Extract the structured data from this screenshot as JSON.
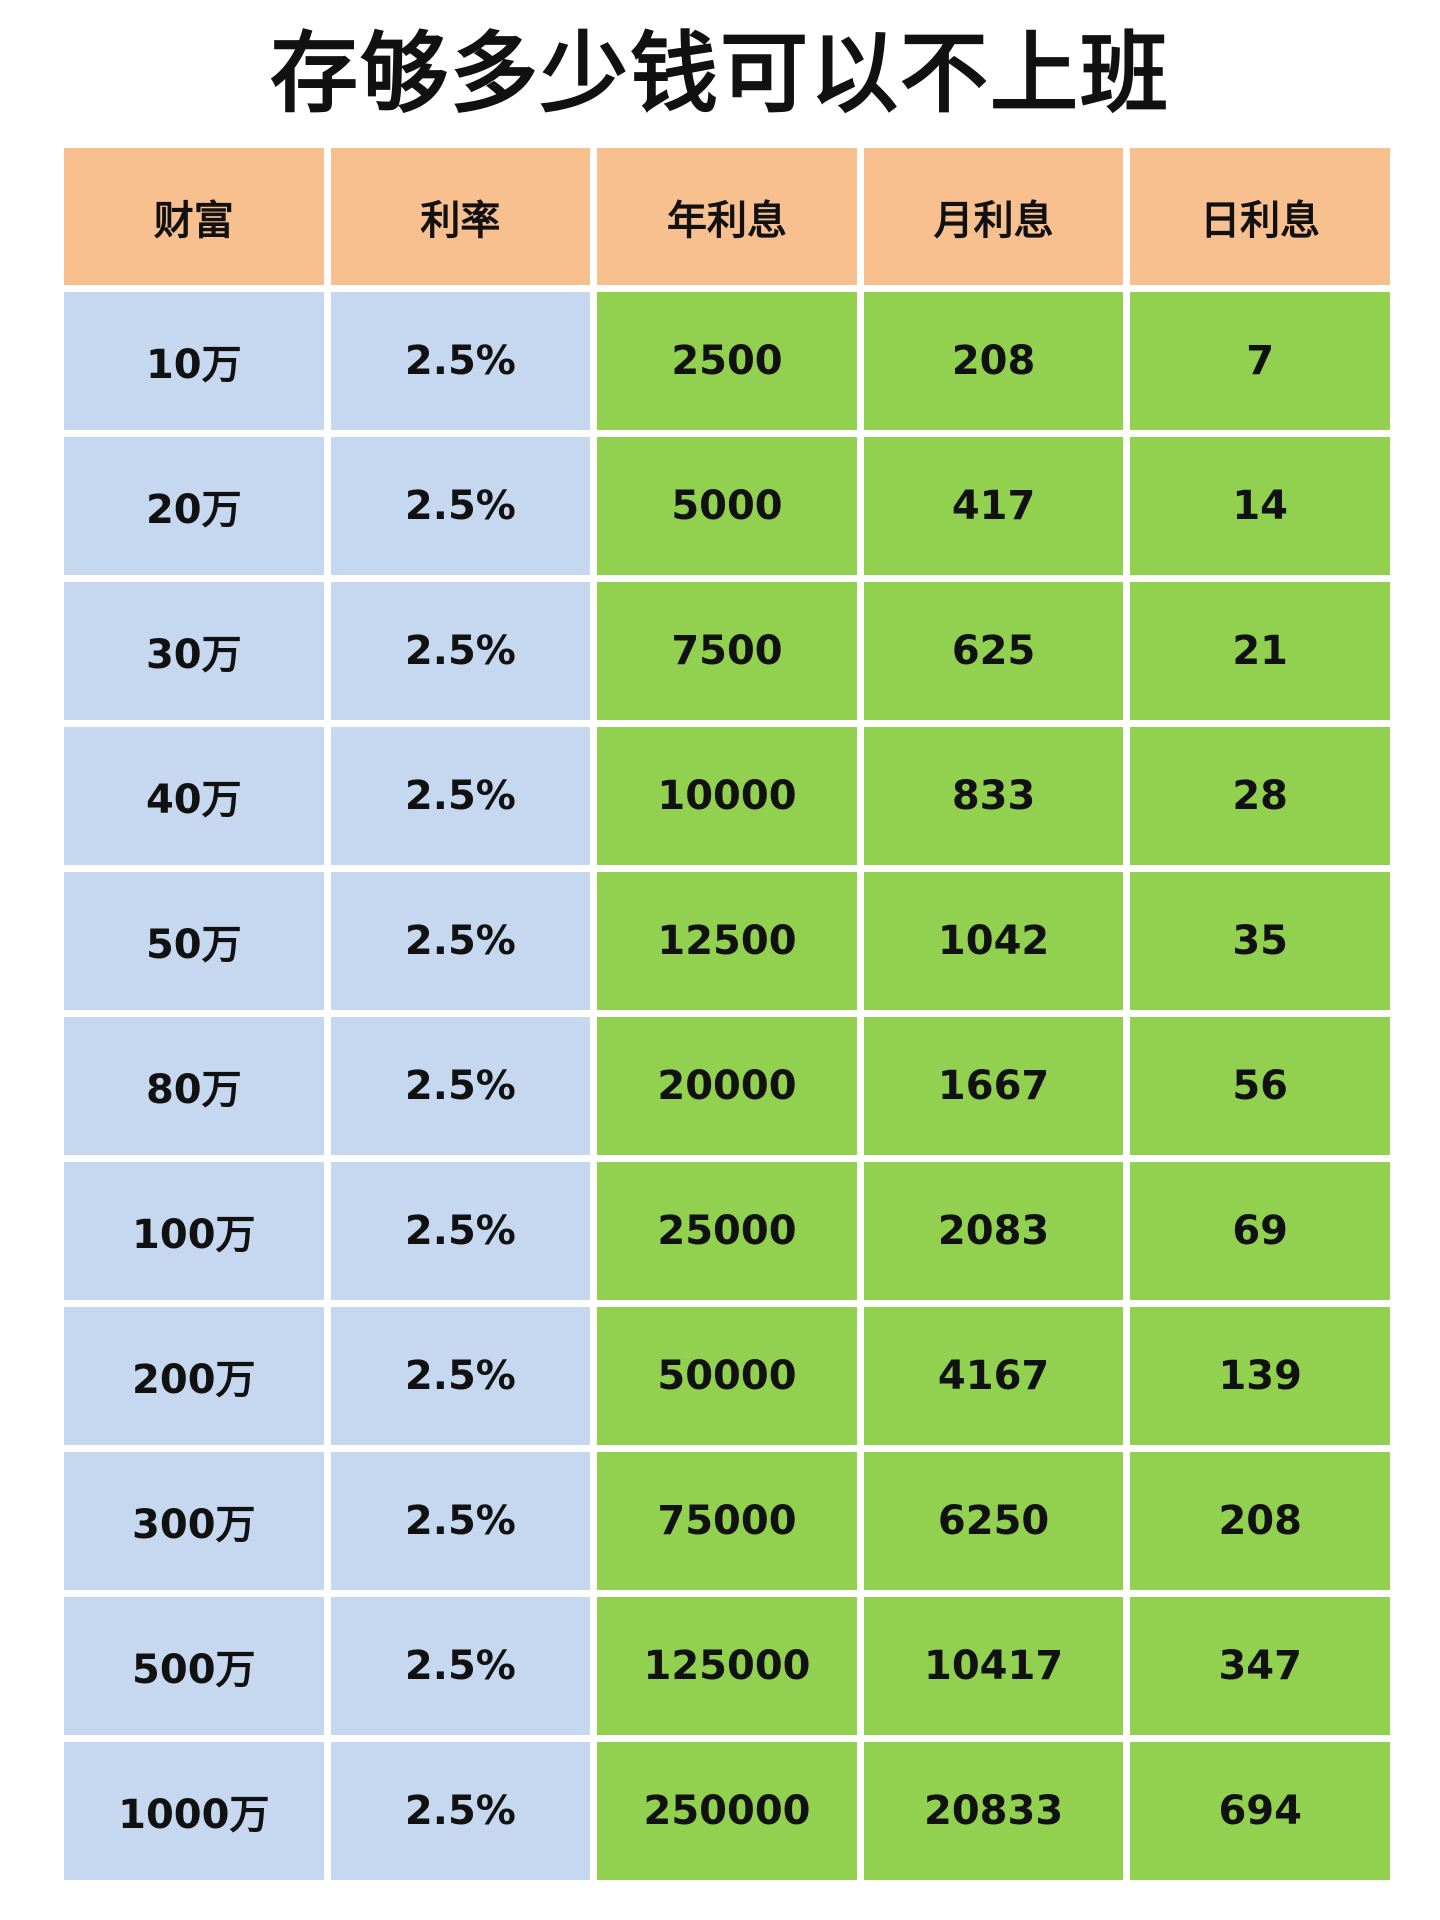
{
  "title": "存够多少钱可以不上班",
  "colors": {
    "header": "#f8bf8f",
    "input_columns": "#c6d8ef",
    "output_columns": "#92d050"
  },
  "table": {
    "headers": [
      "财富",
      "利率",
      "年利息",
      "月利息",
      "日利息"
    ],
    "rows": [
      [
        "10万",
        "2.5%",
        "2500",
        "208",
        "7"
      ],
      [
        "20万",
        "2.5%",
        "5000",
        "417",
        "14"
      ],
      [
        "30万",
        "2.5%",
        "7500",
        "625",
        "21"
      ],
      [
        "40万",
        "2.5%",
        "10000",
        "833",
        "28"
      ],
      [
        "50万",
        "2.5%",
        "12500",
        "1042",
        "35"
      ],
      [
        "80万",
        "2.5%",
        "20000",
        "1667",
        "56"
      ],
      [
        "100万",
        "2.5%",
        "25000",
        "2083",
        "69"
      ],
      [
        "200万",
        "2.5%",
        "50000",
        "4167",
        "139"
      ],
      [
        "300万",
        "2.5%",
        "75000",
        "6250",
        "208"
      ],
      [
        "500万",
        "2.5%",
        "125000",
        "10417",
        "347"
      ],
      [
        "1000万",
        "2.5%",
        "250000",
        "20833",
        "694"
      ]
    ]
  }
}
